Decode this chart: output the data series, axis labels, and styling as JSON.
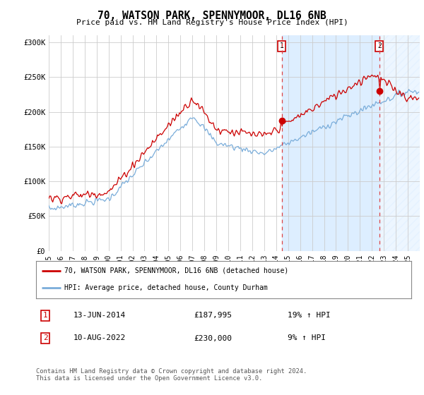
{
  "title": "70, WATSON PARK, SPENNYMOOR, DL16 6NB",
  "subtitle": "Price paid vs. HM Land Registry's House Price Index (HPI)",
  "legend_line1": "70, WATSON PARK, SPENNYMOOR, DL16 6NB (detached house)",
  "legend_line2": "HPI: Average price, detached house, County Durham",
  "sale1_date": "13-JUN-2014",
  "sale1_price": 187995,
  "sale1_hpi_text": "19% ↑ HPI",
  "sale2_date": "10-AUG-2022",
  "sale2_price": 230000,
  "sale2_hpi_text": "9% ↑ HPI",
  "footnote": "Contains HM Land Registry data © Crown copyright and database right 2024.\nThis data is licensed under the Open Government Licence v3.0.",
  "hpi_color": "#7aadda",
  "price_color": "#cc0000",
  "sale_vline_color": "#dd4444",
  "shade_color": "#ddeeff",
  "ylim": [
    0,
    310000
  ],
  "yticks": [
    0,
    50000,
    100000,
    150000,
    200000,
    250000,
    300000
  ],
  "background_color": "#ffffff",
  "grid_color": "#cccccc",
  "sale1_x": 2014.458,
  "sale2_x": 2022.625,
  "xlim_start": 1995,
  "xlim_end": 2026
}
